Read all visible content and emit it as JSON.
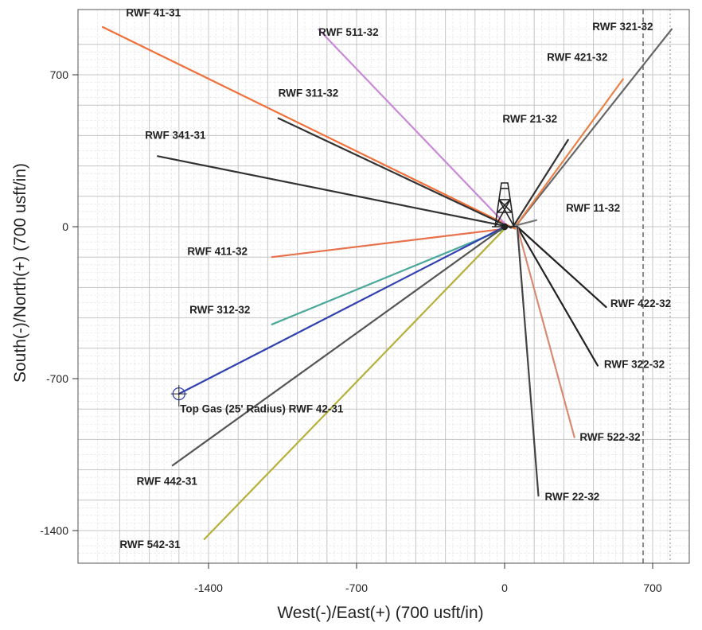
{
  "chart_data": {
    "type": "line",
    "xlabel": "West(-)/East(+) (700 usft/in)",
    "ylabel": "South(-)/North(+) (700 usft/in)",
    "xlim": [
      -1945,
      800
    ],
    "ylim": [
      -1530,
      930
    ],
    "x_ticks": [
      -1400,
      -700,
      0,
      700
    ],
    "y_ticks": [
      -1400,
      -700,
      0,
      700
    ],
    "grid": true,
    "origin": [
      0,
      0
    ],
    "series": [
      {
        "name": "RWF 41-31",
        "color": "#f0703a",
        "points": [
          [
            50,
            -10
          ],
          [
            -1900,
            920
          ]
        ]
      },
      {
        "name": "RWF 511-32",
        "color": "#c88ad6",
        "points": [
          [
            10,
            5
          ],
          [
            -880,
            910
          ]
        ]
      },
      {
        "name": "RWF 321-32",
        "color": "#666666",
        "points": [
          [
            50,
            0
          ],
          [
            790,
            910
          ]
        ]
      },
      {
        "name": "RWF 421-32",
        "color": "#e8824a",
        "points": [
          [
            50,
            0
          ],
          [
            560,
            680
          ]
        ]
      },
      {
        "name": "RWF 311-32",
        "color": "#333333",
        "points": [
          [
            30,
            -5
          ],
          [
            -1070,
            500
          ]
        ]
      },
      {
        "name": "RWF 21-32",
        "color": "#333333",
        "points": [
          [
            40,
            0
          ],
          [
            300,
            400
          ]
        ]
      },
      {
        "name": "RWF 341-31",
        "color": "#333333",
        "points": [
          [
            20,
            0
          ],
          [
            -1640,
            325
          ]
        ]
      },
      {
        "name": "RWF 11-32",
        "color": "#777777",
        "points": [
          [
            30,
            0
          ],
          [
            150,
            30
          ]
        ]
      },
      {
        "name": "RWF 411-32",
        "color": "#e8704a",
        "points": [
          [
            0,
            -10
          ],
          [
            -1100,
            -140
          ]
        ]
      },
      {
        "name": "RWF 422-32",
        "color": "#222222",
        "points": [
          [
            60,
            0
          ],
          [
            480,
            -370
          ]
        ]
      },
      {
        "name": "RWF 312-32",
        "color": "#4aa89a",
        "points": [
          [
            0,
            -10
          ],
          [
            -1100,
            -450
          ]
        ]
      },
      {
        "name": "RWF 322-32",
        "color": "#222222",
        "points": [
          [
            60,
            0
          ],
          [
            440,
            -640
          ]
        ]
      },
      {
        "name": "Top Gas (25' Radius) RWF 42-31",
        "color": "#3040b0",
        "points": [
          [
            0,
            0
          ],
          [
            -1540,
            -770
          ]
        ]
      },
      {
        "name": "RWF 522-32",
        "color": "#d98a72",
        "points": [
          [
            60,
            0
          ],
          [
            330,
            -970
          ]
        ]
      },
      {
        "name": "RWF 442-31",
        "color": "#555555",
        "points": [
          [
            0,
            0
          ],
          [
            -1570,
            -1100
          ]
        ]
      },
      {
        "name": "RWF 22-32",
        "color": "#444444",
        "points": [
          [
            60,
            0
          ],
          [
            160,
            -1240
          ]
        ]
      },
      {
        "name": "RWF 542-31",
        "color": "#b5b03a",
        "points": [
          [
            0,
            -10
          ],
          [
            -1420,
            -1440
          ]
        ]
      }
    ],
    "annotations": [
      {
        "text": "RWF 41-31",
        "x": -1790,
        "y": 970
      },
      {
        "text": "RWF 511-32",
        "x": -880,
        "y": 880
      },
      {
        "text": "RWF 321-32",
        "x": 415,
        "y": 905
      },
      {
        "text": "RWF 421-32",
        "x": 200,
        "y": 765
      },
      {
        "text": "RWF 311-32",
        "x": -1070,
        "y": 600
      },
      {
        "text": "RWF 21-32",
        "x": -10,
        "y": 480
      },
      {
        "text": "RWF 341-31",
        "x": -1700,
        "y": 405
      },
      {
        "text": "RWF 11-32",
        "x": 290,
        "y": 70
      },
      {
        "text": "RWF 411-32",
        "x": -1500,
        "y": -130
      },
      {
        "text": "RWF 422-32",
        "x": 500,
        "y": -370
      },
      {
        "text": "RWF 312-32",
        "x": -1490,
        "y": -400
      },
      {
        "text": "RWF 322-32",
        "x": 470,
        "y": -650
      },
      {
        "text": "Top Gas (25' Radius) RWF 42-31",
        "x": -1535,
        "y": -855
      },
      {
        "text": "RWF 522-32",
        "x": 355,
        "y": -985
      },
      {
        "text": "RWF 442-31",
        "x": -1740,
        "y": -1190
      },
      {
        "text": "RWF 22-32",
        "x": 190,
        "y": -1260
      },
      {
        "text": "RWF 542-31",
        "x": -1820,
        "y": -1480
      }
    ],
    "marker": {
      "name": "target-marker-icon",
      "x": -1540,
      "y": -770
    },
    "rig": {
      "name": "drilling-rig-icon",
      "x": 0,
      "y": 0
    }
  }
}
